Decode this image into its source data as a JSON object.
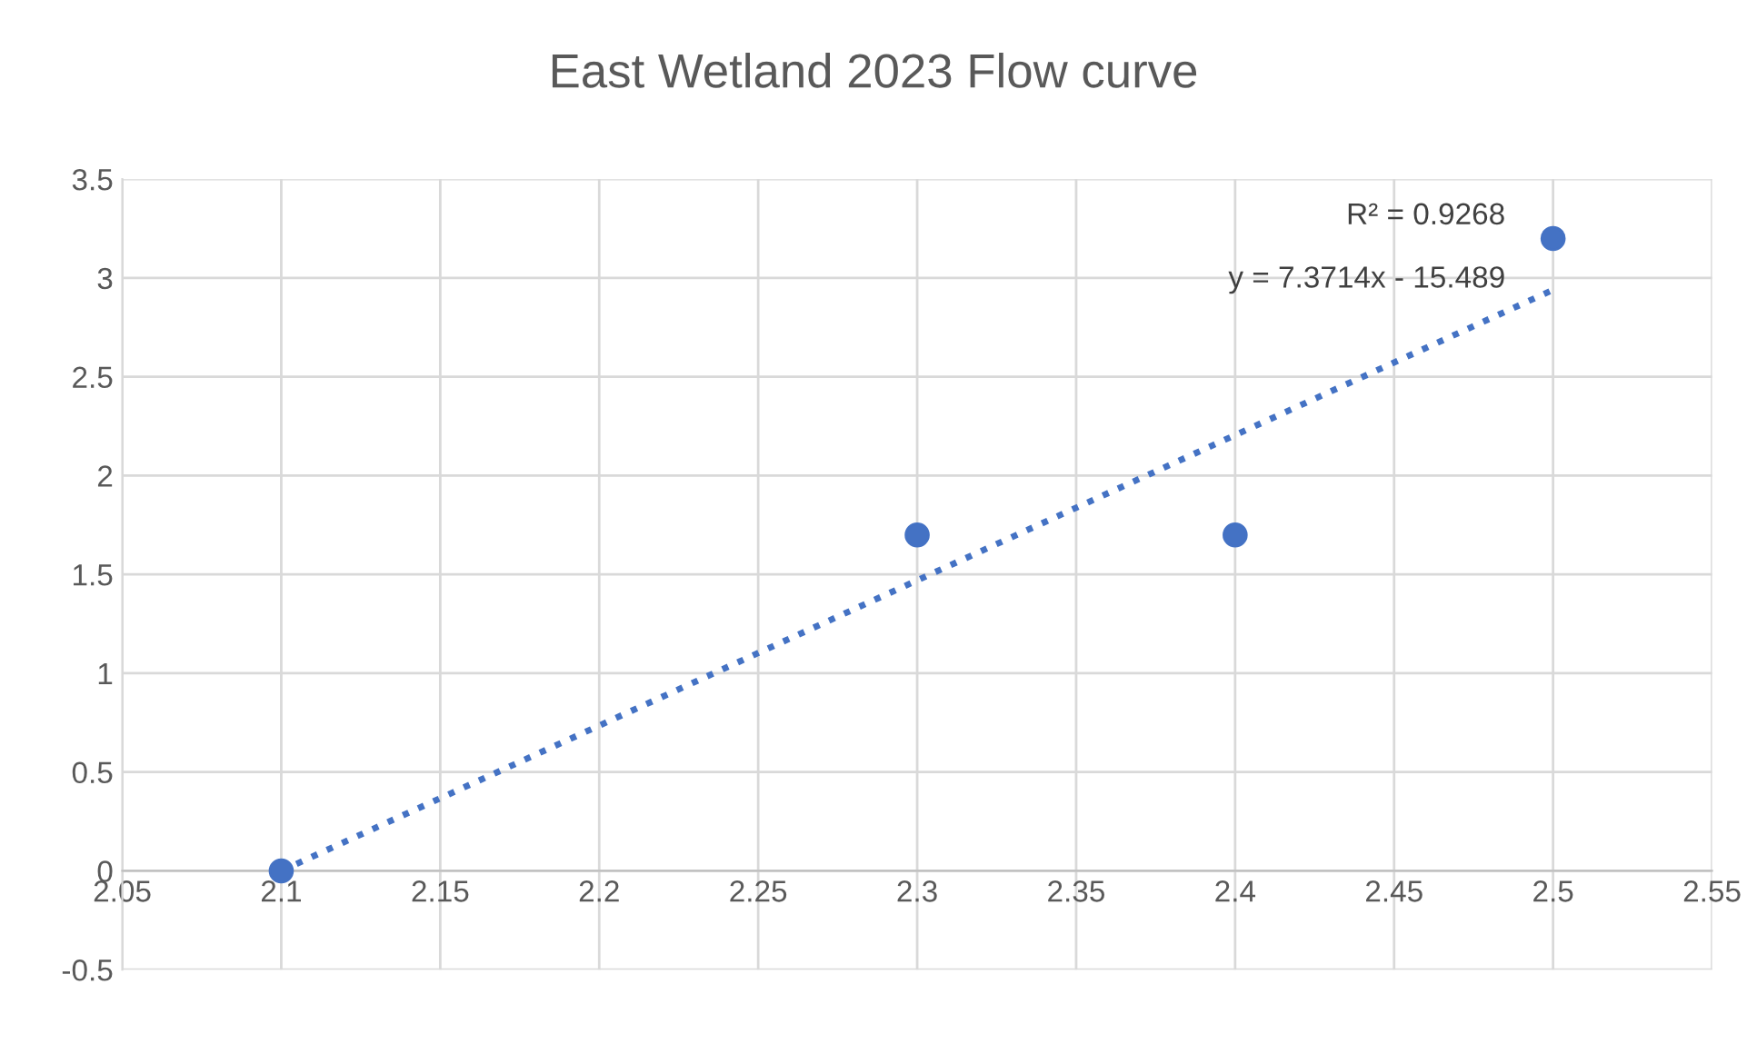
{
  "chart_data": {
    "type": "scatter",
    "title": "East Wetland 2023 Flow curve",
    "series": [
      {
        "color": "#4472c4",
        "x": [
          2.1,
          2.3,
          2.4,
          2.5
        ],
        "values": [
          0,
          1.7,
          1.7,
          3.2
        ],
        "marker": "circle"
      },
      {
        "type": "line",
        "color": "#4472c4",
        "x": [
          2.1,
          2.5
        ],
        "values": [
          0.0,
          2.94
        ],
        "line_style": "dotted",
        "marker": "none"
      }
    ],
    "annotations": [
      "R² = 0.9268",
      "y = 7.3714x - 15.489"
    ],
    "xlim": [
      2.05,
      2.55
    ],
    "xticks": [
      2.05,
      2.1,
      2.15,
      2.2,
      2.25,
      2.3,
      2.35,
      2.4,
      2.45,
      2.5,
      2.55
    ],
    "ylim": [
      -0.5,
      3.5
    ],
    "yticks": [
      -0.5,
      0,
      0.5,
      1,
      1.5,
      2,
      2.5,
      3,
      3.5
    ],
    "grid": true,
    "legend": false
  }
}
